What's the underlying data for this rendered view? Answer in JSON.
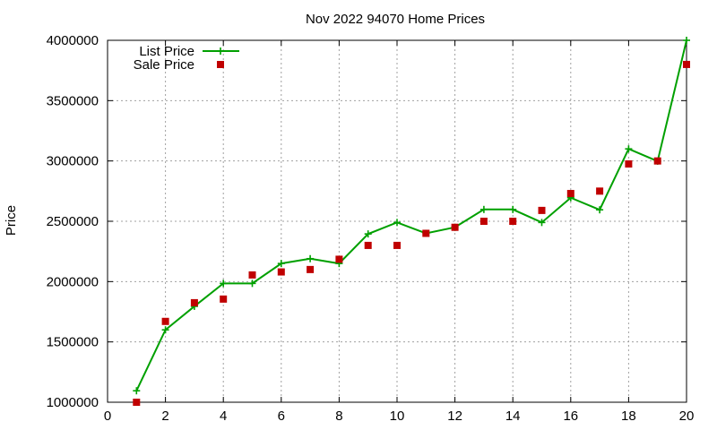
{
  "chart_data": {
    "type": "line",
    "title": "Nov 2022 94070 Home Prices",
    "xlabel": "",
    "ylabel": "Price",
    "xlim": [
      0,
      20
    ],
    "ylim": [
      1000000,
      4000000
    ],
    "x_ticks": [
      0,
      2,
      4,
      6,
      8,
      10,
      12,
      14,
      16,
      18,
      20
    ],
    "y_ticks": [
      1000000,
      1500000,
      2000000,
      2500000,
      3000000,
      3500000,
      4000000
    ],
    "grid": true,
    "legend_position": "top-left",
    "series": [
      {
        "name": "List Price",
        "style": "line-with-plus-markers",
        "color": "#00a000",
        "x": [
          1,
          2,
          3,
          4,
          5,
          6,
          7,
          8,
          9,
          10,
          11,
          12,
          13,
          14,
          15,
          16,
          17,
          18,
          19,
          20
        ],
        "values": [
          1095000,
          1600000,
          1795000,
          1985000,
          1985000,
          2150000,
          2190000,
          2150000,
          2395000,
          2490000,
          2400000,
          2450000,
          2598000,
          2598000,
          2490000,
          2695000,
          2595000,
          3100000,
          2998000,
          4000000
        ]
      },
      {
        "name": "Sale Price",
        "style": "square-markers",
        "color": "#c00000",
        "x": [
          1,
          2,
          3,
          4,
          5,
          6,
          7,
          8,
          9,
          10,
          11,
          12,
          13,
          14,
          15,
          16,
          17,
          18,
          19,
          20
        ],
        "values": [
          1000000,
          1670000,
          1825000,
          1855000,
          2055000,
          2080000,
          2100000,
          2185000,
          2300000,
          2300000,
          2400000,
          2450000,
          2500000,
          2500000,
          2590000,
          2730000,
          2750000,
          2975000,
          3000000,
          3800000
        ]
      }
    ]
  }
}
